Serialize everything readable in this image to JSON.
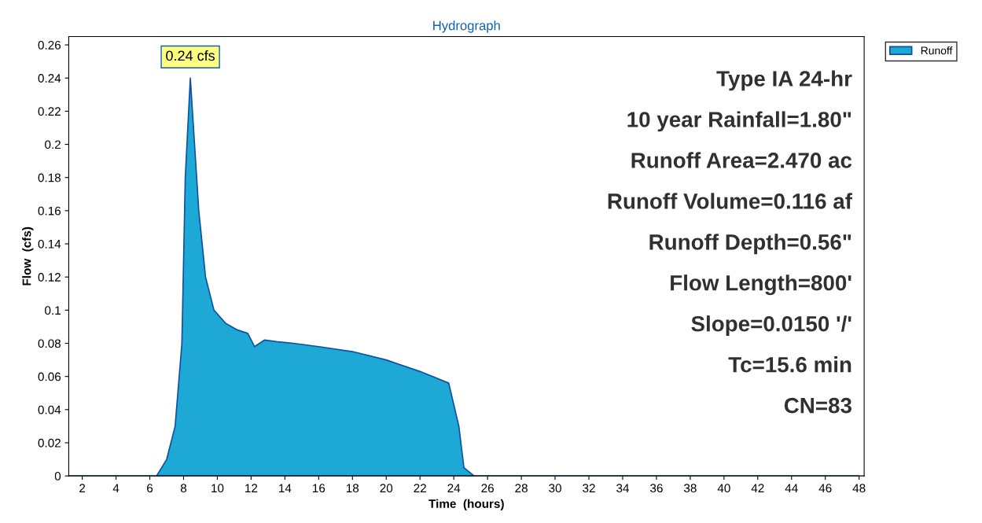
{
  "chart_data": {
    "type": "area",
    "title": "Hydrograph",
    "xlabel": "Time  (hours)",
    "ylabel": "Flow  (cfs)",
    "x": [
      1.2,
      6.4,
      7.0,
      7.5,
      7.9,
      8.1,
      8.4,
      8.9,
      9.3,
      9.8,
      10.5,
      11.2,
      11.8,
      12.2,
      12.8,
      13.5,
      14.5,
      16,
      18,
      20,
      22,
      23.7,
      24.3,
      24.6,
      25.2,
      48
    ],
    "series": [
      {
        "name": "Runoff",
        "color": "#1ea8d6",
        "values": [
          0,
          0,
          0.01,
          0.03,
          0.08,
          0.18,
          0.24,
          0.16,
          0.12,
          0.1,
          0.092,
          0.088,
          0.086,
          0.078,
          0.082,
          0.081,
          0.08,
          0.078,
          0.075,
          0.07,
          0.063,
          0.056,
          0.03,
          0.005,
          0,
          0
        ]
      }
    ],
    "xlim": [
      1.2,
      48.3
    ],
    "ylim": [
      0,
      0.265
    ],
    "xticks": [
      2,
      4,
      6,
      8,
      10,
      12,
      14,
      16,
      18,
      20,
      22,
      24,
      26,
      28,
      30,
      32,
      34,
      36,
      38,
      40,
      42,
      44,
      46,
      48
    ],
    "yticks": [
      0,
      0.02,
      0.04,
      0.06,
      0.08,
      0.1,
      0.12,
      0.14,
      0.16,
      0.18,
      0.2,
      0.22,
      0.24,
      0.26
    ],
    "legend": "top right",
    "grid": false,
    "annotations": [
      {
        "text": "0.24 cfs",
        "x": 8.4,
        "y": 0.24
      },
      "Type IA 24-hr",
      "10 year Rainfall=1.80\"",
      "Runoff Area=2.470 ac",
      "Runoff Volume=0.116 af",
      "Runoff Depth=0.56\"",
      "Flow Length=800'",
      "Slope=0.0150 '/'",
      "Tc=15.6 min",
      "CN=83"
    ]
  }
}
